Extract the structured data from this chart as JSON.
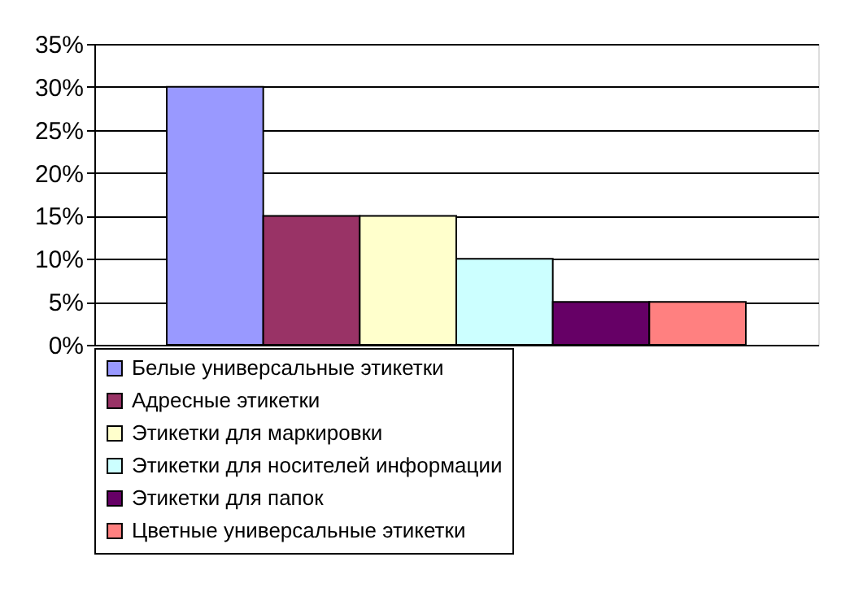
{
  "chart_data": {
    "type": "bar",
    "categories": [
      null
    ],
    "series": [
      {
        "name": "Белые универсальные этикетки",
        "color": "#9999ff",
        "values": [
          30
        ]
      },
      {
        "name": "Адресные этикетки",
        "color": "#993366",
        "values": [
          15
        ]
      },
      {
        "name": "Этикетки для маркировки",
        "color": "#ffffcc",
        "values": [
          15
        ]
      },
      {
        "name": "Этикетки для носителей информации",
        "color": "#ccffff",
        "values": [
          10
        ]
      },
      {
        "name": "Этикетки для папок",
        "color": "#660066",
        "values": [
          5
        ]
      },
      {
        "name": "Цветные универсальные этикетки",
        "color": "#ff8080",
        "values": [
          5
        ]
      }
    ],
    "ylim": [
      0,
      35
    ],
    "yticks": [
      {
        "value": 0,
        "label": "0%"
      },
      {
        "value": 5,
        "label": "5%"
      },
      {
        "value": 10,
        "label": "10%"
      },
      {
        "value": 15,
        "label": "15%"
      },
      {
        "value": 20,
        "label": "20%"
      },
      {
        "value": 25,
        "label": "25%"
      },
      {
        "value": 30,
        "label": "30%"
      },
      {
        "value": 35,
        "label": "35%"
      }
    ],
    "grid": "y",
    "legend": "bottom"
  }
}
